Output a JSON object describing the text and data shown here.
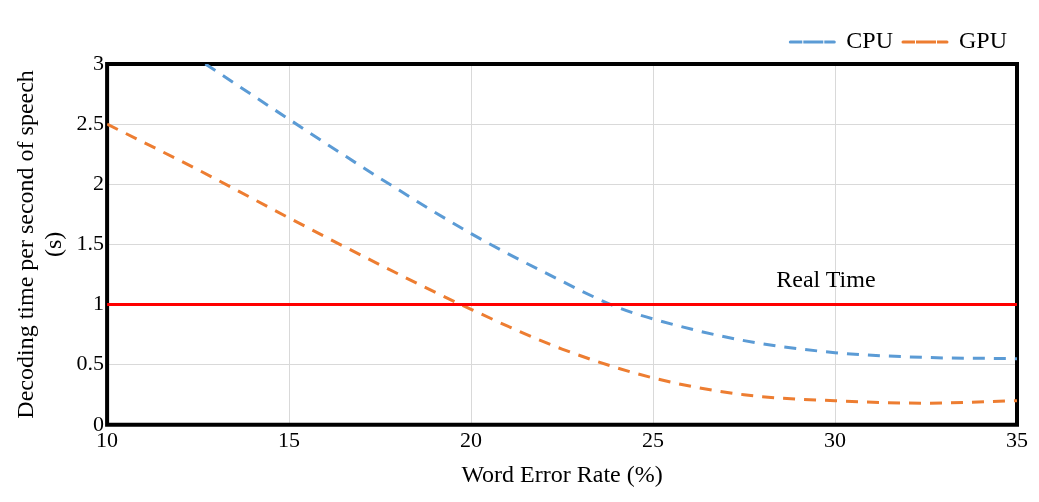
{
  "chart_data": {
    "type": "line",
    "xlabel": "Word Error Rate (%)",
    "ylabel": "Decoding time per second of speech (s)",
    "xlim": [
      10,
      35
    ],
    "xticks": [
      10,
      15,
      20,
      25,
      30,
      35
    ],
    "ylim": [
      0,
      3
    ],
    "yticks": [
      0,
      0.5,
      1,
      1.5,
      2,
      2.5,
      3
    ],
    "series": [
      {
        "name": "CPU",
        "color": "#5b9bd5",
        "x": [
          12.7,
          15,
          17.5,
          20,
          22,
          24,
          25,
          27.5,
          30,
          32.5,
          35
        ],
        "values": [
          3.0,
          2.54,
          2.05,
          1.59,
          1.27,
          0.98,
          0.88,
          0.7,
          0.6,
          0.56,
          0.55
        ]
      },
      {
        "name": "GPU",
        "color": "#ed7d31",
        "x": [
          10,
          12.5,
          15,
          17.5,
          20,
          22.5,
          25,
          27.5,
          30,
          32.5,
          35
        ],
        "values": [
          2.5,
          2.12,
          1.72,
          1.33,
          0.96,
          0.63,
          0.39,
          0.25,
          0.2,
          0.18,
          0.2
        ]
      }
    ],
    "ref_lines": [
      {
        "axis": "y",
        "value": 1,
        "label": "Real Time",
        "color": "#ff0000"
      }
    ],
    "grid": true,
    "legend": "top right",
    "line_style": "dashed",
    "marker": "none"
  }
}
